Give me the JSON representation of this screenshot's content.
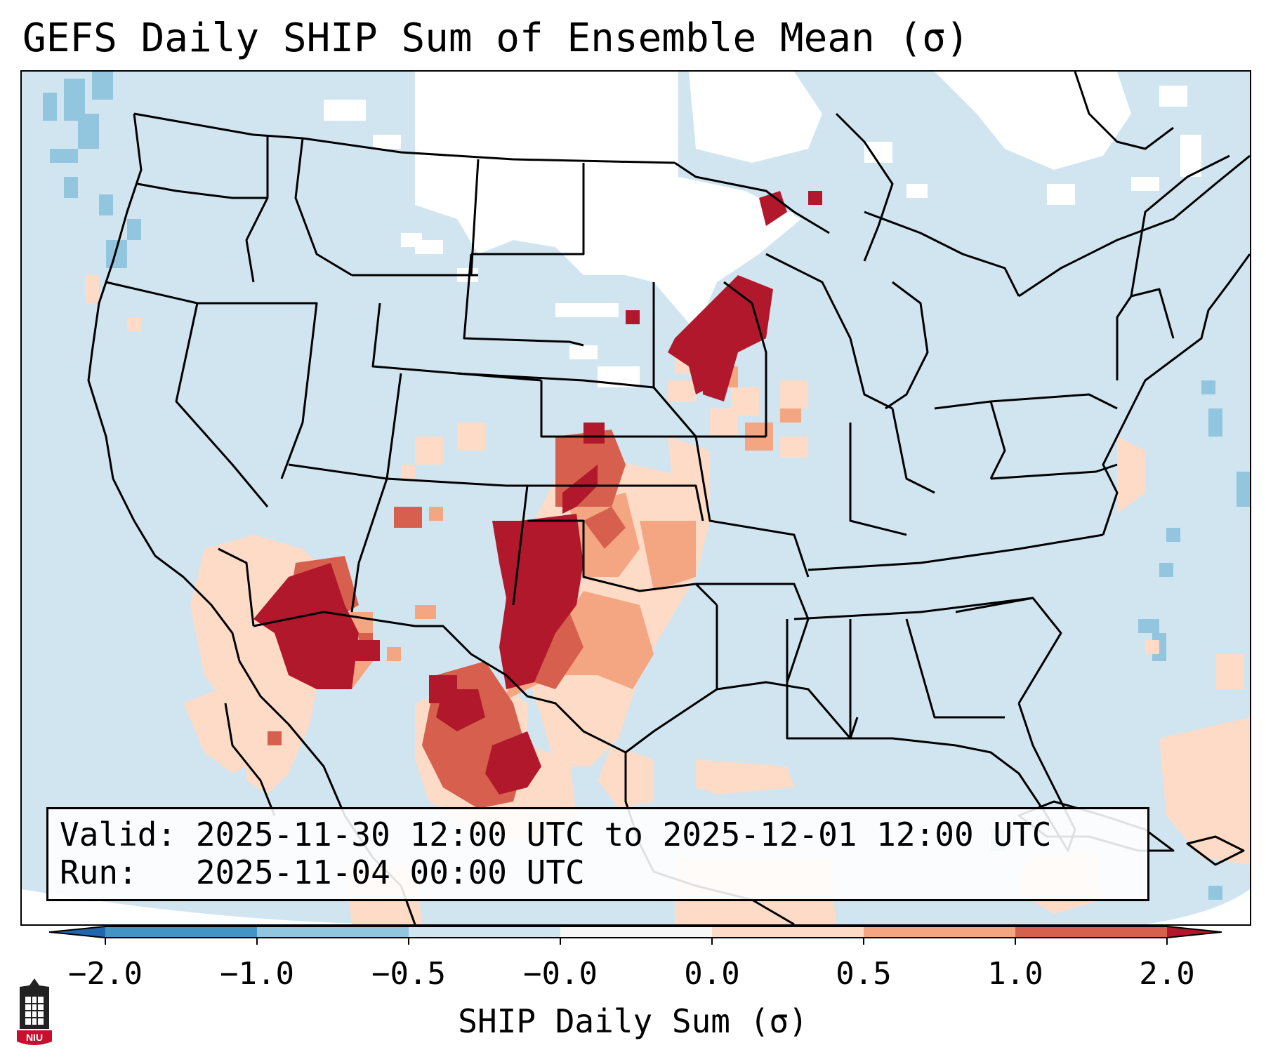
{
  "title": "GEFS Daily SHIP Sum of Ensemble Mean (σ)",
  "info": {
    "valid": "Valid: 2025-11-30 12:00 UTC to 2025-12-01 12:00 UTC",
    "run": "Run:   2025-11-04 00:00 UTC"
  },
  "colorbar": {
    "label": "SHIP Daily Sum (σ)",
    "ticks": [
      "−2.0",
      "−1.0",
      "−0.5",
      "−0.0",
      "0.0",
      "0.5",
      "1.0",
      "2.0"
    ],
    "colors": [
      "#2f79b5",
      "#6eaad0",
      "#a6cde3",
      "#deebf4",
      "#fcdbc7",
      "#f09b7b",
      "#d7614f",
      "#b2182b"
    ],
    "extend": "both"
  },
  "map": {
    "region": "Contiguous United States",
    "fill_colors": {
      "white": "#ffffff",
      "light_blue": "#d1e5f0",
      "blue": "#92c5de",
      "mid_blue": "#6eaad0",
      "peach": "#fddbc7",
      "salmon": "#f4a582",
      "red": "#d6604d",
      "dark_red": "#b2182b"
    }
  },
  "logo": {
    "text": "NIU",
    "color": "#c8102e"
  }
}
